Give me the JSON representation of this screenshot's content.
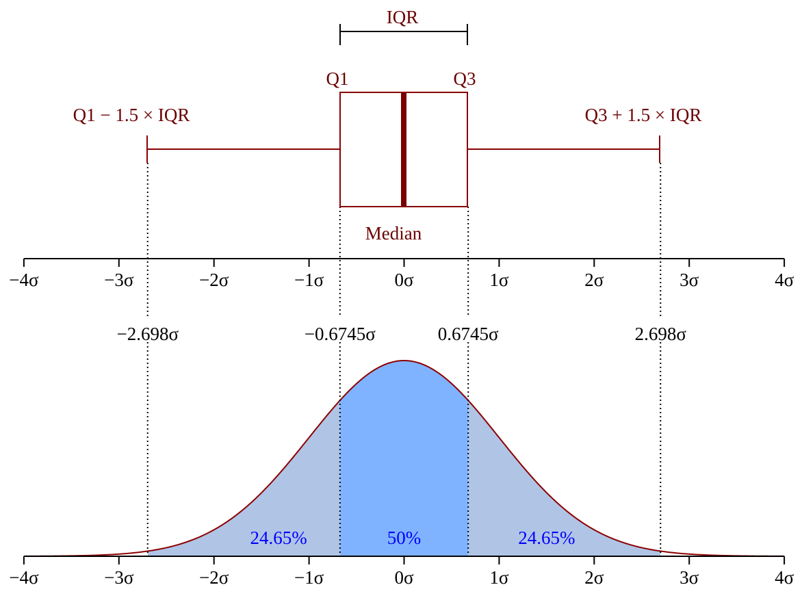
{
  "colors": {
    "box": "#8b0000",
    "label": "#6b0000",
    "tails": "#b0c4e6",
    "iqr_fill": "#80b3ff",
    "percent_text": "#0000ff"
  },
  "labels": {
    "iqr": "IQR",
    "q1": "Q1",
    "q3": "Q3",
    "lower_whisker": "Q1 − 1.5 × IQR",
    "upper_whisker": "Q3 + 1.5 × IQR",
    "median": "Median"
  },
  "axis_ticks": [
    "−4σ",
    "−3σ",
    "−2σ",
    "−1σ",
    "0σ",
    "1σ",
    "2σ",
    "3σ",
    "4σ"
  ],
  "chart_data": {
    "type": "boxplot-with-normal-pdf",
    "xlim": [
      -4,
      4
    ],
    "box": {
      "q1": -0.6745,
      "median": 0,
      "q3": 0.6745,
      "whisker_low": -2.698,
      "whisker_high": 2.698
    },
    "marker_labels": [
      {
        "value": -2.698,
        "text": "−2.698σ"
      },
      {
        "value": -0.6745,
        "text": "−0.6745σ"
      },
      {
        "value": 0.6745,
        "text": "0.6745σ"
      },
      {
        "value": 2.698,
        "text": "2.698σ"
      }
    ],
    "region_labels": [
      {
        "center": -1.32,
        "text": "24.65%"
      },
      {
        "center": 0,
        "text": "50%"
      },
      {
        "center": 1.5,
        "text": "24.65%"
      }
    ]
  }
}
